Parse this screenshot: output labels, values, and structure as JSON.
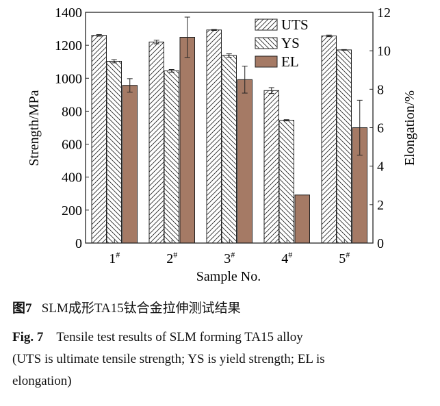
{
  "chart_data": {
    "type": "bar",
    "categories": [
      "1#",
      "2#",
      "3#",
      "4#",
      "5#"
    ],
    "category_base": [
      "1",
      "2",
      "3",
      "4",
      "5"
    ],
    "category_sup": "#",
    "xlabel": "Sample No.",
    "ylabel": "Strength/MPa",
    "y2label": "Elongation/%",
    "ylim": [
      0,
      1400
    ],
    "y2lim": [
      0,
      12
    ],
    "yticks": [
      0,
      200,
      400,
      600,
      800,
      1000,
      1200,
      1400
    ],
    "y2ticks": [
      0,
      2,
      4,
      6,
      8,
      10,
      12
    ],
    "grid": false,
    "legend_position": "top-right",
    "series": [
      {
        "name": "UTS",
        "axis": "left",
        "pattern": "hatch-forward",
        "values": [
          1260,
          1220,
          1293,
          925,
          1257
        ],
        "errors": [
          5,
          11,
          3,
          18,
          5
        ]
      },
      {
        "name": "YS",
        "axis": "left",
        "pattern": "hatch-backward",
        "values": [
          1103,
          1045,
          1138,
          745,
          1172
        ],
        "errors": [
          10,
          8,
          10,
          4,
          2
        ]
      },
      {
        "name": "EL",
        "axis": "right",
        "color": "#a57a65",
        "values": [
          8.2,
          10.7,
          8.5,
          2.5,
          6.0
        ],
        "errors": [
          0.35,
          1.05,
          0.7,
          0,
          1.43
        ]
      }
    ]
  },
  "caption": {
    "cn_label": "图7",
    "cn_text": "SLM成形TA15钛合金拉伸测试结果",
    "en_label": "Fig. 7",
    "en_line1": "Tensile test results of SLM forming TA15 alloy",
    "en_line2": "(UTS is ultimate tensile strength; YS is yield strength; EL is",
    "en_line3": "elongation)"
  }
}
